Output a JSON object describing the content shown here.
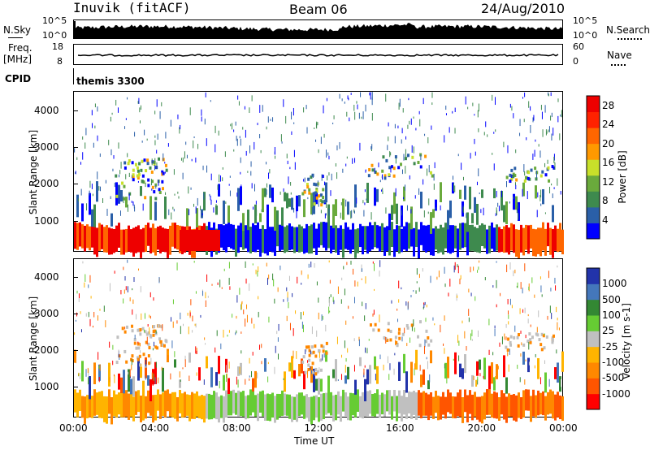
{
  "header": {
    "station": "Inuvik (fitACF)",
    "beam": "Beam 06",
    "date": "24/Aug/2010"
  },
  "top_panels": {
    "nsky_label": "N.Sky",
    "nsky_ticks": [
      "10^5",
      "10^0"
    ],
    "nsearch_label": "N.Search",
    "nsearch_ticks": [
      "10^5",
      "10^0"
    ],
    "freq_label": "Freq.",
    "freq_unit": "[MHz]",
    "freq_ticks": [
      "18",
      "8"
    ],
    "nave_label": "Nave",
    "nave_ticks": [
      "60",
      "0"
    ],
    "cpid_label": "CPID",
    "cpid_value": "themis 3300"
  },
  "colors": {
    "power_scale": [
      "#0000ff",
      "#2a5fa8",
      "#3e8a4e",
      "#6aaa3c",
      "#c8e02a",
      "#ff9900",
      "#ff6600",
      "#ff2200",
      "#ee0000"
    ],
    "velocity_scale": [
      "#ff0000",
      "#ff5500",
      "#ff8800",
      "#ffb400",
      "#c0c0c0",
      "#66cc33",
      "#338833",
      "#4477bb",
      "#2233aa"
    ]
  },
  "chart_data": [
    {
      "type": "heatmap",
      "title": "Power",
      "xlabel": "",
      "ylabel": "Slant Range [km]",
      "xlim": [
        "00:00",
        "00:00"
      ],
      "ylim": [
        180,
        4500
      ],
      "y_ticks": [
        "1000",
        "2000",
        "3000",
        "4000"
      ],
      "colorbar": {
        "label": "Power [dB]",
        "ticks": [
          "4",
          "8",
          "12",
          "16",
          "20",
          "24",
          "28"
        ],
        "range": [
          0,
          30
        ]
      }
    },
    {
      "type": "heatmap",
      "title": "Velocity",
      "xlabel": "Time UT",
      "ylabel": "Slant Range [km]",
      "x_ticks": [
        "00:00",
        "04:00",
        "08:00",
        "12:00",
        "16:00",
        "20:00",
        "00:00"
      ],
      "ylim": [
        180,
        4500
      ],
      "y_ticks": [
        "1000",
        "2000",
        "3000",
        "4000"
      ],
      "colorbar": {
        "label": "Velocity [m s-1]",
        "ticks": [
          "1000",
          "500",
          "100",
          "25",
          "-25",
          "-100",
          "-500",
          "-1000"
        ]
      }
    }
  ]
}
